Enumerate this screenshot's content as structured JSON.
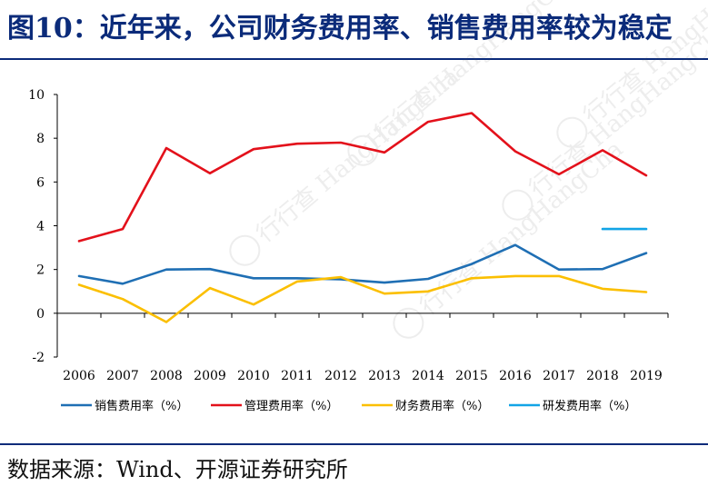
{
  "title": "图10：近年来，公司财务费用率、销售费用率较为稳定",
  "source": "数据来源：Wind、开源证券研究所",
  "watermark": "行行查 HangHangCha",
  "chart_data": {
    "type": "line",
    "title": "",
    "xlabel": "",
    "ylabel": "",
    "ylim": [
      -2,
      10
    ],
    "yticks": [
      -2,
      0,
      2,
      4,
      6,
      8,
      10
    ],
    "x": [
      "2006",
      "2007",
      "2008",
      "2009",
      "2010",
      "2011",
      "2012",
      "2013",
      "2014",
      "2015",
      "2016",
      "2017",
      "2018",
      "2019"
    ],
    "legend_position": "bottom",
    "series": [
      {
        "name": "销售费用率（%）",
        "color": "#1f6fb4",
        "values": [
          1.7,
          1.35,
          2.0,
          2.02,
          1.6,
          1.6,
          1.55,
          1.4,
          1.57,
          2.25,
          3.12,
          2.0,
          2.02,
          2.75
        ]
      },
      {
        "name": "管理费用率（%）",
        "color": "#e3111b",
        "values": [
          3.3,
          3.85,
          7.55,
          6.4,
          7.5,
          7.75,
          7.8,
          7.35,
          8.75,
          9.15,
          7.4,
          6.35,
          7.45,
          6.3
        ]
      },
      {
        "name": "财务费用率（%）",
        "color": "#fbbf00",
        "values": [
          1.3,
          0.65,
          -0.4,
          1.15,
          0.4,
          1.45,
          1.65,
          0.9,
          1.0,
          1.6,
          1.7,
          1.7,
          1.12,
          0.97
        ]
      },
      {
        "name": "研发费用率（%）",
        "color": "#12a4e6",
        "values": [
          null,
          null,
          null,
          null,
          null,
          null,
          null,
          null,
          null,
          null,
          null,
          null,
          3.85,
          3.85
        ]
      }
    ]
  }
}
